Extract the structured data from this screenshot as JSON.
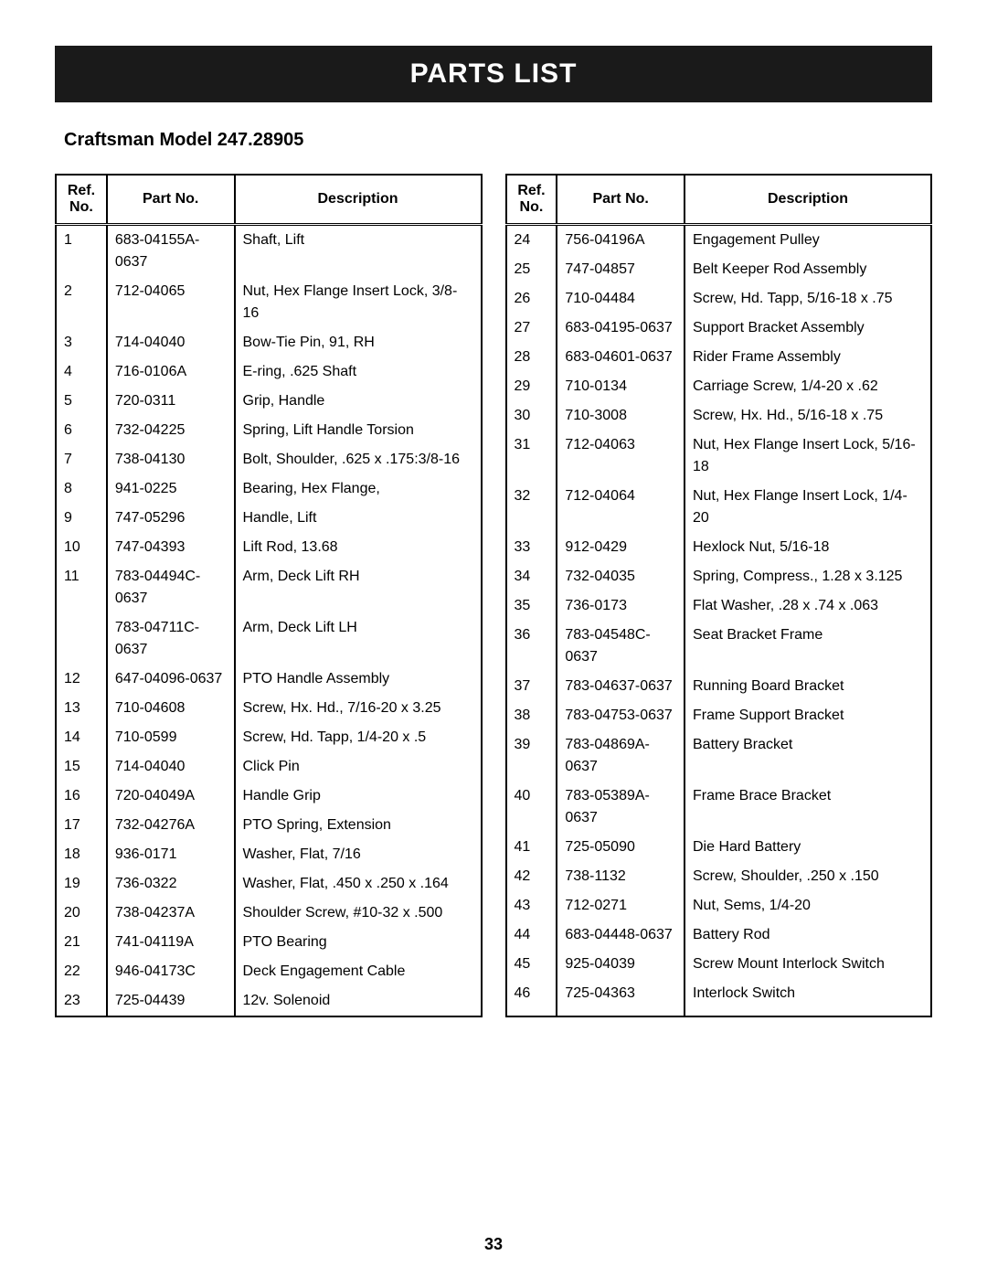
{
  "banner": "PARTS LIST",
  "model": "Craftsman Model 247.28905",
  "pageNumber": "33",
  "headers": {
    "ref": "Ref. No.",
    "part": "Part No.",
    "desc": "Description"
  },
  "tableStyle": {
    "border_color": "#000000",
    "background_color": "#ffffff",
    "header_fontsize": 16,
    "cell_fontsize": 16,
    "banner_bg": "#1a1a1a",
    "banner_fg": "#ffffff",
    "col_widths": [
      "12%",
      "30%",
      "58%"
    ]
  },
  "leftRows": [
    {
      "ref": "1",
      "part": "683-04155A-0637",
      "desc": "Shaft, Lift"
    },
    {
      "ref": "2",
      "part": "712-04065",
      "desc": "Nut, Hex Flange Insert Lock, 3/8-16"
    },
    {
      "ref": "3",
      "part": "714-04040",
      "desc": "Bow-Tie Pin, 91, RH"
    },
    {
      "ref": "4",
      "part": "716-0106A",
      "desc": "E-ring, .625 Shaft"
    },
    {
      "ref": "5",
      "part": "720-0311",
      "desc": "Grip, Handle"
    },
    {
      "ref": "6",
      "part": "732-04225",
      "desc": "Spring, Lift  Handle Torsion"
    },
    {
      "ref": "7",
      "part": "738-04130",
      "desc": "Bolt, Shoulder, .625 x .175:3/8-16"
    },
    {
      "ref": "8",
      "part": "941-0225",
      "desc": "Bearing, Hex Flange,"
    },
    {
      "ref": "9",
      "part": "747-05296",
      "desc": "Handle, Lift"
    },
    {
      "ref": "10",
      "part": "747-04393",
      "desc": "Lift Rod, 13.68"
    },
    {
      "ref": "11",
      "part": "783-04494C-0637",
      "desc": "Arm, Deck Lift RH"
    },
    {
      "ref": "",
      "part": "783-04711C-0637",
      "desc": "Arm, Deck Lift LH"
    },
    {
      "ref": "12",
      "part": "647-04096-0637",
      "desc": "PTO Handle Assembly"
    },
    {
      "ref": "13",
      "part": "710-04608",
      "desc": "Screw, Hx. Hd., 7/16-20 x 3.25"
    },
    {
      "ref": "14",
      "part": "710-0599",
      "desc": "Screw, Hd. Tapp, 1/4-20 x .5"
    },
    {
      "ref": "15",
      "part": "714-04040",
      "desc": "Click Pin"
    },
    {
      "ref": "16",
      "part": "720-04049A",
      "desc": "Handle Grip"
    },
    {
      "ref": "17",
      "part": "732-04276A",
      "desc": "PTO Spring, Extension"
    },
    {
      "ref": "18",
      "part": "936-0171",
      "desc": "Washer, Flat, 7/16"
    },
    {
      "ref": "19",
      "part": "736-0322",
      "desc": "Washer, Flat, .450 x .250 x .164"
    },
    {
      "ref": "20",
      "part": "738-04237A",
      "desc": "Shoulder Screw, #10-32 x .500"
    },
    {
      "ref": "21",
      "part": "741-04119A",
      "desc": "PTO Bearing"
    },
    {
      "ref": "22",
      "part": "946-04173C",
      "desc": "Deck Engagement Cable"
    },
    {
      "ref": "23",
      "part": "725-04439",
      "desc": "12v. Solenoid"
    }
  ],
  "rightRows": [
    {
      "ref": "24",
      "part": "756-04196A",
      "desc": "Engagement Pulley"
    },
    {
      "ref": "25",
      "part": "747-04857",
      "desc": "Belt Keeper Rod Assembly"
    },
    {
      "ref": "26",
      "part": "710-04484",
      "desc": "Screw, Hd. Tapp, 5/16-18 x .75"
    },
    {
      "ref": "27",
      "part": "683-04195-0637",
      "desc": "Support Bracket Assembly"
    },
    {
      "ref": "28",
      "part": "683-04601-0637",
      "desc": "Rider Frame Assembly"
    },
    {
      "ref": "29",
      "part": "710-0134",
      "desc": "Carriage Screw, 1/4-20 x .62"
    },
    {
      "ref": "30",
      "part": "710-3008",
      "desc": "Screw, Hx. Hd., 5/16-18 x .75"
    },
    {
      "ref": "31",
      "part": "712-04063",
      "desc": "Nut, Hex Flange Insert Lock, 5/16-18"
    },
    {
      "ref": "32",
      "part": "712-04064",
      "desc": "Nut, Hex Flange Insert Lock, 1/4-20"
    },
    {
      "ref": "33",
      "part": "912-0429",
      "desc": "Hexlock Nut, 5/16-18"
    },
    {
      "ref": "34",
      "part": "732-04035",
      "desc": "Spring, Compress., 1.28 x 3.125"
    },
    {
      "ref": "35",
      "part": "736-0173",
      "desc": "Flat Washer, .28 x .74 x .063"
    },
    {
      "ref": "36",
      "part": "783-04548C-0637",
      "desc": "Seat Bracket Frame"
    },
    {
      "ref": "37",
      "part": "783-04637-0637",
      "desc": "Running Board Bracket"
    },
    {
      "ref": "38",
      "part": "783-04753-0637",
      "desc": "Frame Support Bracket"
    },
    {
      "ref": "39",
      "part": "783-04869A-0637",
      "desc": "Battery Bracket"
    },
    {
      "ref": "40",
      "part": "783-05389A-0637",
      "desc": "Frame Brace Bracket"
    },
    {
      "ref": "41",
      "part": "725-05090",
      "desc": "Die Hard Battery"
    },
    {
      "ref": "42",
      "part": "738-1132",
      "desc": "Screw, Shoulder, .250 x .150"
    },
    {
      "ref": "43",
      "part": "712-0271",
      "desc": "Nut, Sems, 1/4-20"
    },
    {
      "ref": "44",
      "part": "683-04448-0637",
      "desc": "Battery Rod"
    },
    {
      "ref": "45",
      "part": "925-04039",
      "desc": "Screw Mount Interlock Switch"
    },
    {
      "ref": "46",
      "part": "725-04363",
      "desc": "Interlock Switch"
    },
    {
      "ref": "",
      "part": "",
      "desc": ""
    }
  ]
}
